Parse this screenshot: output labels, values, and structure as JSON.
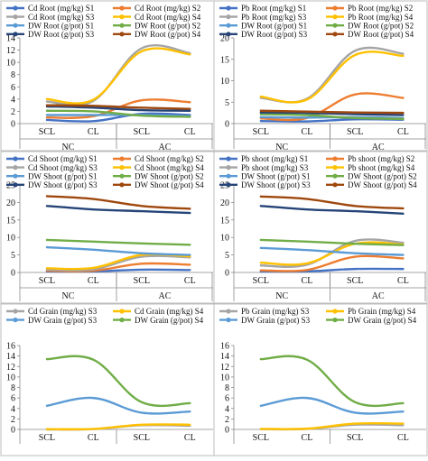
{
  "chart_data": [
    {
      "type": "line",
      "panel": "Cd Root",
      "categories": [
        "SCL",
        "CL",
        "SCL",
        "CL"
      ],
      "groups": [
        "NC",
        "AC"
      ],
      "ylim": [
        0,
        14
      ],
      "yticks": [
        0,
        2,
        4,
        6,
        8,
        10,
        12,
        14
      ],
      "legend_position": "top",
      "series": [
        {
          "name": "Cd Root (mg/kg) S1",
          "color": "#4472C4",
          "values": [
            0.6,
            0.4,
            1.6,
            1.4
          ]
        },
        {
          "name": "Cd Root (mg/kg) S2",
          "color": "#ED7D31",
          "values": [
            1.0,
            1.2,
            3.8,
            3.5
          ]
        },
        {
          "name": "Cd Root (mg/kg) S3",
          "color": "#A5A5A5",
          "values": [
            3.6,
            3.7,
            12.3,
            11.5
          ]
        },
        {
          "name": "Cd Root (mg/kg) S4",
          "color": "#FFC000",
          "values": [
            4.0,
            3.9,
            11.8,
            11.3
          ]
        },
        {
          "name": "DW Root (g/pot) S1",
          "color": "#5B9BD5",
          "values": [
            1.4,
            1.4,
            1.4,
            1.2
          ]
        },
        {
          "name": "DW Root (g/pot) S2",
          "color": "#70AD47",
          "values": [
            2.1,
            2.0,
            1.3,
            1.1
          ]
        },
        {
          "name": "DW Root (g/pot) S3",
          "color": "#264478",
          "values": [
            2.8,
            2.6,
            2.2,
            2.1
          ]
        },
        {
          "name": "DW Root (g/pot) S4",
          "color": "#9E480E",
          "values": [
            3.0,
            2.9,
            2.6,
            2.4
          ]
        }
      ]
    },
    {
      "type": "line",
      "panel": "Pb Root",
      "categories": [
        "SCL",
        "CL",
        "SCL",
        "CL"
      ],
      "groups": [
        "NC",
        "AC"
      ],
      "ylim": [
        0,
        20
      ],
      "yticks": [
        0,
        5,
        10,
        15,
        20
      ],
      "legend_position": "top",
      "series": [
        {
          "name": "Pb Root (mg/kg) S1",
          "color": "#4472C4",
          "values": [
            0.6,
            0.5,
            1.0,
            0.9
          ]
        },
        {
          "name": "Pb Root (mg/kg) S2",
          "color": "#ED7D31",
          "values": [
            1.2,
            1.3,
            6.8,
            6.0
          ]
        },
        {
          "name": "Pb Root (mg/kg) S3",
          "color": "#A5A5A5",
          "values": [
            6.0,
            5.8,
            17.0,
            16.3
          ]
        },
        {
          "name": "Pb Root (mg/kg) S4",
          "color": "#FFC000",
          "values": [
            6.3,
            5.6,
            16.0,
            15.8
          ]
        },
        {
          "name": "DW Root (g/pot) S1",
          "color": "#5B9BD5",
          "values": [
            1.5,
            1.4,
            1.5,
            1.3
          ]
        },
        {
          "name": "DW Root (g/pot) S2",
          "color": "#70AD47",
          "values": [
            2.2,
            2.0,
            1.3,
            1.1
          ]
        },
        {
          "name": "DW Root (g/pot) S3",
          "color": "#264478",
          "values": [
            2.6,
            2.5,
            2.2,
            2.0
          ]
        },
        {
          "name": "DW Root (g/pot) S4",
          "color": "#9E480E",
          "values": [
            3.0,
            2.8,
            2.6,
            2.5
          ]
        }
      ]
    },
    {
      "type": "line",
      "panel": "Cd Shoot",
      "categories": [
        "SCL",
        "CL",
        "SCL",
        "CL"
      ],
      "groups": [
        "NC",
        "AC"
      ],
      "ylim": [
        0,
        25
      ],
      "yticks": [
        0,
        5,
        10,
        15,
        20,
        25
      ],
      "legend_position": "top",
      "series": [
        {
          "name": "Cd Shoot (mg/kg) S1",
          "color": "#4472C4",
          "values": [
            0.3,
            0.3,
            0.8,
            0.7
          ]
        },
        {
          "name": "Cd Shoot (mg/kg) S2",
          "color": "#ED7D31",
          "values": [
            0.5,
            0.5,
            2.5,
            2.2
          ]
        },
        {
          "name": "Cd Shoot (mg/kg) S3",
          "color": "#A5A5A5",
          "values": [
            0.8,
            0.9,
            4.5,
            4.3
          ]
        },
        {
          "name": "Cd Shoot (mg/kg) S4",
          "color": "#FFC000",
          "values": [
            1.2,
            1.3,
            5.0,
            4.6
          ]
        },
        {
          "name": "DW Shoot (g/pot) S1",
          "color": "#5B9BD5",
          "values": [
            7.2,
            6.5,
            5.5,
            5.0
          ]
        },
        {
          "name": "DW Shoot (g/pot) S2",
          "color": "#70AD47",
          "values": [
            9.3,
            8.8,
            8.3,
            7.9
          ]
        },
        {
          "name": "DW Shoot (g/pot) S3",
          "color": "#264478",
          "values": [
            19.0,
            18.0,
            17.5,
            17.0
          ]
        },
        {
          "name": "DW Shoot (g/pot) S4",
          "color": "#9E480E",
          "values": [
            21.8,
            21.0,
            19.0,
            18.2
          ]
        }
      ]
    },
    {
      "type": "line",
      "panel": "Pb shoot",
      "categories": [
        "SCL",
        "CL",
        "SCL",
        "CL"
      ],
      "groups": [
        "NC",
        "AC"
      ],
      "ylim": [
        0,
        25
      ],
      "yticks": [
        0,
        5,
        10,
        15,
        20,
        25
      ],
      "legend_position": "top",
      "series": [
        {
          "name": "Pb shoot (mg/kg) S1",
          "color": "#4472C4",
          "values": [
            0.3,
            0.3,
            1.0,
            1.0
          ]
        },
        {
          "name": "Pb shoot (mg/kg) S2",
          "color": "#ED7D31",
          "values": [
            0.6,
            0.7,
            4.5,
            4.0
          ]
        },
        {
          "name": "Pb shoot (mg/kg) S3",
          "color": "#A5A5A5",
          "values": [
            2.0,
            2.2,
            9.0,
            8.5
          ]
        },
        {
          "name": "Pb shoot (mg/kg) S4",
          "color": "#FFC000",
          "values": [
            2.8,
            2.6,
            8.2,
            8.0
          ]
        },
        {
          "name": "DW Shoot (g/pot) S1",
          "color": "#5B9BD5",
          "values": [
            7.0,
            6.4,
            5.5,
            5.0
          ]
        },
        {
          "name": "DW Shoot (g/pot) S2",
          "color": "#70AD47",
          "values": [
            9.3,
            8.8,
            8.2,
            7.8
          ]
        },
        {
          "name": "DW Shoot (g/pot) S3",
          "color": "#264478",
          "values": [
            19.0,
            18.0,
            17.5,
            16.8
          ]
        },
        {
          "name": "DW Shoot (g/pot) S4",
          "color": "#9E480E",
          "values": [
            21.7,
            21.0,
            19.0,
            18.3
          ]
        }
      ]
    },
    {
      "type": "line",
      "panel": "Cd Grain",
      "categories": [
        "SCL",
        "CL",
        "SCL",
        "CL"
      ],
      "ylim": [
        0,
        16
      ],
      "yticks": [
        0,
        2,
        4,
        6,
        8,
        10,
        12,
        14,
        16
      ],
      "legend_position": "top",
      "series": [
        {
          "name": "Cd Grain (mg/kg) S3",
          "color": "#A5A5A5",
          "values": [
            0.0,
            0.05,
            0.8,
            0.7
          ]
        },
        {
          "name": "Cd Grain (mg/kg) S4",
          "color": "#FFC000",
          "values": [
            0.05,
            0.1,
            0.9,
            0.9
          ]
        },
        {
          "name": "DW Grain (g/pot) S3",
          "color": "#5B9BD5",
          "values": [
            4.5,
            6.0,
            3.2,
            3.4
          ]
        },
        {
          "name": "DW Grain (g/pot) S4",
          "color": "#70AD47",
          "values": [
            13.4,
            13.3,
            5.2,
            5.0
          ]
        }
      ]
    },
    {
      "type": "line",
      "panel": "Pb Grain",
      "categories": [
        "SCL",
        "CL",
        "SCL",
        "CL"
      ],
      "ylim": [
        0,
        16
      ],
      "yticks": [
        0,
        2,
        4,
        6,
        8,
        10,
        12,
        14,
        16
      ],
      "legend_position": "top",
      "series": [
        {
          "name": "Pb Grain (mg/kg) S3",
          "color": "#A5A5A5",
          "values": [
            0.05,
            0.1,
            0.9,
            0.8
          ]
        },
        {
          "name": "Pb Grain (mg/kg) S4",
          "color": "#FFC000",
          "values": [
            0.1,
            0.15,
            1.1,
            1.1
          ]
        },
        {
          "name": "DW Grain (g/pot) S3",
          "color": "#5B9BD5",
          "values": [
            4.5,
            6.0,
            3.2,
            3.4
          ]
        },
        {
          "name": "DW Grain (g/pot) S4",
          "color": "#70AD47",
          "values": [
            13.4,
            13.3,
            5.2,
            5.0
          ]
        }
      ]
    }
  ]
}
